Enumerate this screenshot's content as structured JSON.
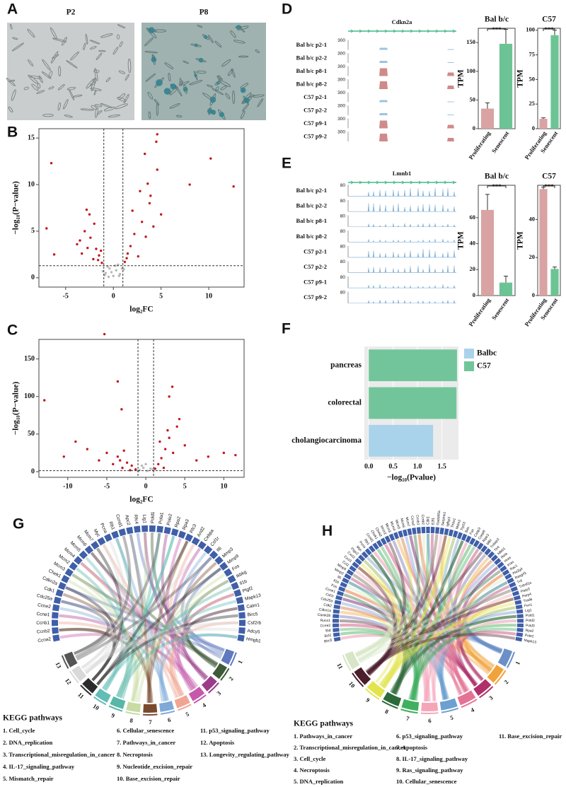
{
  "panel_letters": [
    "A",
    "B",
    "C",
    "D",
    "E",
    "F",
    "G",
    "H"
  ],
  "panel_a": {
    "left_title": "P2",
    "right_title": "P8"
  },
  "panel_d": {
    "gene": "Cdkn2a",
    "scale": 300,
    "samples": [
      "Bal b/c p2-1",
      "Bal b/c p2-2",
      "Bal b/c p8-1",
      "Bal b/c p8-2",
      "C57 p2-1",
      "C57 p2-2",
      "C57 p9-1",
      "C57 p9-2"
    ]
  },
  "panel_e": {
    "gene": "Lmnb1",
    "scale": 80,
    "samples": [
      "Bal b/c p2-1",
      "Bal b/c p2-2",
      "Bal b/c p8-1",
      "Bal b/c p8-2",
      "C57 p2-1",
      "C57 p2-2",
      "C57 p9-1",
      "C57 p9-2"
    ]
  },
  "chart_data": [
    {
      "type": "scatter",
      "xlabel": "log₂FC",
      "ylabel": "−log₁₀(P−value)",
      "xlim": [
        -7.8,
        13.7
      ],
      "ylim": [
        -1,
        16
      ],
      "xticks": [
        -5,
        0,
        5,
        10
      ],
      "yticks": [
        0,
        5,
        10,
        15
      ],
      "thresholds": {
        "x": [
          -1,
          1
        ],
        "y": 1.3
      },
      "series": [
        {
          "color": "#b8b8b8",
          "x": [
            -0.8,
            -0.4,
            0,
            0.3,
            0.7,
            -0.6,
            0.5,
            -0.2,
            0.9,
            -0.9,
            1.1,
            -1.1,
            0.2,
            -0.5,
            0.6
          ],
          "values": [
            0.5,
            1.0,
            0.2,
            0.8,
            0.4,
            1.2,
            1.4,
            0.6,
            1.0,
            0.3,
            0.9,
            0.7,
            1.3,
            0.1,
            0.2
          ]
        },
        {
          "color": "#c4161c",
          "x": [
            -1.2,
            -1.5,
            -1.8,
            -2.1,
            -2.4,
            -2.7,
            -3.0,
            -3.3,
            -2.0,
            -1.6,
            -2.5,
            -3.5,
            -1.3,
            -2.8,
            -6.5,
            -7.0,
            -6.2,
            -3.8,
            1.2,
            1.5,
            1.8,
            2.2,
            2.6,
            3.0,
            3.4,
            3.8,
            4.2,
            2.0,
            2.8,
            3.6,
            4.6,
            1.4,
            5.0,
            4.5,
            4.6,
            10.2,
            12.6,
            8.0,
            3.3,
            3.9
          ],
          "values": [
            1.6,
            2.4,
            3.1,
            2.0,
            4.3,
            3.2,
            5.0,
            2.6,
            5.8,
            1.9,
            6.8,
            4.0,
            2.9,
            7.3,
            12.3,
            5.3,
            2.5,
            3.6,
            1.7,
            2.6,
            3.4,
            4.7,
            2.3,
            6.0,
            4.4,
            8.0,
            5.5,
            7.2,
            9.3,
            10.1,
            15.4,
            2.1,
            6.8,
            14.6,
            11.6,
            12.8,
            9.8,
            10.0,
            13.3,
            8.8
          ]
        }
      ]
    },
    {
      "type": "scatter",
      "xlabel": "log₂FC",
      "ylabel": "−log₁₀(P−value)",
      "xlim": [
        -13.7,
        12.6
      ],
      "ylim": [
        -7.5,
        176
      ],
      "xticks": [
        -10,
        -5,
        0,
        5,
        10
      ],
      "yticks": [
        0,
        50,
        100,
        150
      ],
      "thresholds": {
        "x": [
          -1,
          1
        ],
        "y": 1.3
      },
      "series": [
        {
          "color": "#b8b8b8",
          "x": [
            -0.8,
            -0.3,
            0.2,
            0.6,
            -0.5,
            0.9,
            0,
            -1,
            1
          ],
          "values": [
            2,
            5,
            1,
            4,
            8,
            3,
            10,
            1,
            2
          ]
        },
        {
          "color": "#c4161c",
          "x": [
            -1.3,
            -1.8,
            -2.4,
            -3.0,
            -3.6,
            -4.2,
            -5.0,
            -6.0,
            -7.5,
            -9.0,
            -10.5,
            -2.0,
            -2.8,
            -3.3,
            -5.3,
            -3.6,
            -3.1,
            -13.0,
            1.2,
            1.6,
            2.0,
            2.5,
            3.0,
            3.5,
            4.0,
            5.0,
            6.5,
            8.0,
            10.0,
            2.3,
            3.4,
            4.3,
            3.0,
            1.8,
            2.8,
            11.5
          ],
          "values": [
            3,
            8,
            12,
            5,
            20,
            10,
            25,
            15,
            30,
            40,
            20,
            2,
            28,
            15,
            183,
            120,
            83,
            95,
            4,
            10,
            18,
            30,
            45,
            25,
            60,
            35,
            15,
            20,
            25,
            5,
            113,
            70,
            100,
            40,
            55,
            22
          ]
        }
      ]
    },
    {
      "type": "bar",
      "title": "Bal b/c",
      "ylabel": "TPM",
      "annotation": "***",
      "categories": [
        "Proliferating",
        "Senescent"
      ],
      "values": [
        35,
        148
      ],
      "errors": [
        10,
        25
      ],
      "colors": [
        "#d9a3a3",
        "#6cc494"
      ],
      "ylim": [
        0,
        175
      ],
      "yticks": [
        0,
        50,
        100,
        150
      ]
    },
    {
      "type": "bar",
      "title": "C57",
      "ylabel": "TPM",
      "annotation": "***",
      "categories": [
        "Proliferating",
        "Senescent"
      ],
      "values": [
        10,
        95
      ],
      "errors": [
        1,
        5
      ],
      "colors": [
        "#d9a3a3",
        "#6cc494"
      ],
      "ylim": [
        0,
        102
      ],
      "yticks": [
        0,
        25,
        50,
        75,
        100
      ]
    },
    {
      "type": "bar",
      "title": "Bal b/c",
      "ylabel": "TPM",
      "annotation": "***",
      "categories": [
        "Proliferating",
        "Senescent"
      ],
      "values": [
        66,
        10
      ],
      "errors": [
        12,
        5
      ],
      "colors": [
        "#d9a3a3",
        "#6cc494"
      ],
      "ylim": [
        0,
        85
      ],
      "yticks": [
        0,
        20,
        40,
        60
      ]
    },
    {
      "type": "bar",
      "title": "C57",
      "ylabel": "TPM",
      "annotation": "***",
      "categories": [
        "Proliferating",
        "Senescent"
      ],
      "values": [
        56,
        14
      ],
      "errors": [
        1,
        1
      ],
      "colors": [
        "#d9a3a3",
        "#6cc494"
      ],
      "ylim": [
        0,
        58
      ],
      "yticks": [
        0,
        20,
        40
      ]
    },
    {
      "type": "hbar",
      "xlabel": "−log₁₀(Pvalue)",
      "categories": [
        "pancreas",
        "colorectal",
        "cholangiocarcinoma"
      ],
      "series": [
        {
          "name": "Balbc",
          "color": "#a9d3ea",
          "values": [
            null,
            null,
            1.32
          ]
        },
        {
          "name": "C57",
          "color": "#72c59a",
          "values": [
            1.81,
            1.8,
            null
          ]
        }
      ],
      "xlim": [
        -0.09,
        1.84
      ],
      "xticks": [
        {
          "value": 0,
          "label": "0.0"
        },
        0.5,
        {
          "value": 1,
          "label": "1.0"
        },
        1.5
      ],
      "grid": true
    }
  ],
  "panel_g": {
    "genes": [
      "Ccna2",
      "Ccnb2",
      "Ccnb1",
      "Ccne1",
      "Ccne2",
      "Cdc25a",
      "Cdk1",
      "Cdkn2a",
      "Chek1",
      "Mcm3",
      "Mcm2",
      "Mcm4",
      "Mcm5",
      "Mcm6",
      "Mcm7",
      "Myc",
      "Pcna",
      "Rb1",
      "Ccnd1",
      "Apc2",
      "Rfc4",
      "Lig1",
      "Pold1",
      "Pola1",
      "Pole2",
      "Rpa2",
      "Rpa3",
      "Rfc3",
      "Arid2",
      "Cebpa",
      "Csf1r",
      "Il6",
      "Mmp3",
      "Mmp9",
      "Fos",
      "Ikbkg",
      "Il1b",
      "Plgf2",
      "Mapk13",
      "Calm1",
      "Birc5",
      "Csf2rb",
      "Adcy5",
      "Hmgb1"
    ],
    "legend_title": "KEGG pathways",
    "pathways": [
      {
        "number": 1,
        "name": "1. Cell_cycle",
        "color": "#5f78bf"
      },
      {
        "number": 2,
        "name": "2. DNA_replication",
        "color": "#3e5a38"
      },
      {
        "number": 3,
        "name": "3. Transcriptional_misregulation_in_cancer",
        "color": "#9a3c8a"
      },
      {
        "number": 4,
        "name": "4. IL-17_signaling_pathway",
        "color": "#c659ab"
      },
      {
        "number": 5,
        "name": "5. Mismatch_repair",
        "color": "#f0a592"
      },
      {
        "number": 6,
        "name": "6. Cellular_senescence",
        "color": "#7ea9d8"
      },
      {
        "number": 7,
        "name": "7. Pathways_in_cancer",
        "color": "#7a4a2e"
      },
      {
        "number": 8,
        "name": "8. Necroptosis",
        "color": "#c8dba3"
      },
      {
        "number": 9,
        "name": "9. Nucleotide_excision_repair",
        "color": "#58b7a6"
      },
      {
        "number": 10,
        "name": "10. Base_excision_repair",
        "color": "#62bdb6"
      },
      {
        "number": 11,
        "name": "11. p53_signaling_pathway",
        "color": "#2b2b2b"
      },
      {
        "number": 12,
        "name": "12. Apoptosis",
        "color": "#d9d9d9"
      },
      {
        "number": 13,
        "name": "13. Longevity_regulating_pathway",
        "color": "#555555"
      }
    ]
  },
  "panel_h": {
    "genes": [
      "Birc5",
      "Bcl2",
      "Bid",
      "Ccne2",
      "Runx1",
      "Camk2b",
      "Cdkn1a",
      "Cdk2",
      "Cdc25a",
      "Csf1r",
      "Ccne1",
      "Fos",
      "Il1b",
      "Il6",
      "Mmp3",
      "Mmp9",
      "Ccl2",
      "Cxcl1",
      "Cxcl2",
      "Ptgs2",
      "Myc",
      "Pcna",
      "Rb1",
      "Ccnd1",
      "Chek1",
      "Chek2",
      "Mcm2",
      "Mcm3",
      "Mcm4",
      "Mcm5",
      "Mcm6",
      "Mcm7",
      "Ccna2",
      "Ccnb1",
      "Ccnb2",
      "Cdk1",
      "E2f1",
      "Gadd45a",
      "Serpine1",
      "Igfbp3",
      "Thbs1",
      "Mdm2",
      "Trp53",
      "Bax",
      "Fas",
      "Casp3",
      "Casp8",
      "Ripk3",
      "Mlkl",
      "Tnfaip3",
      "Tlr4",
      "Nfkb1",
      "Rela",
      "Hras",
      "Kras",
      "Rac1",
      "Pla2g4",
      "Rasgrf1",
      "Tnf",
      "Tnfrsf1a",
      "Parp3",
      "Parp4",
      "Trad6",
      "Fen1",
      "Lig1",
      "Pold1",
      "Pold2",
      "Pold3",
      "Rpa2",
      "Pole2",
      "Mapk13"
    ],
    "legend_title": "KEGG pathways",
    "pathways": [
      {
        "number": 1,
        "name": "1. Pathways_in_cancer",
        "color": "#6b8fc7"
      },
      {
        "number": 2,
        "name": "2. Transcriptional_misregulation_in_cancer",
        "color": "#f2a23a"
      },
      {
        "number": 3,
        "name": "3. Cell_cycle",
        "color": "#b0306a"
      },
      {
        "number": 4,
        "name": "4. Necroptosis",
        "color": "#e47294"
      },
      {
        "number": 5,
        "name": "5. DNA_replication",
        "color": "#6ca0d0"
      },
      {
        "number": 6,
        "name": "6. p53_signaling_pathway",
        "color": "#f4a6b8"
      },
      {
        "number": 7,
        "name": "7. Apoptosis",
        "color": "#3fb060"
      },
      {
        "number": 8,
        "name": "8. IL-17_signaling_pathway",
        "color": "#2d6a3a"
      },
      {
        "number": 9,
        "name": "9. Ras_signaling_pathway",
        "color": "#e2e44c"
      },
      {
        "number": 10,
        "name": "10. Cellular_senescence",
        "color": "#4a1e2a"
      },
      {
        "number": 11,
        "name": "11. Base_excision_repair",
        "color": "#d6e6c6"
      }
    ]
  }
}
